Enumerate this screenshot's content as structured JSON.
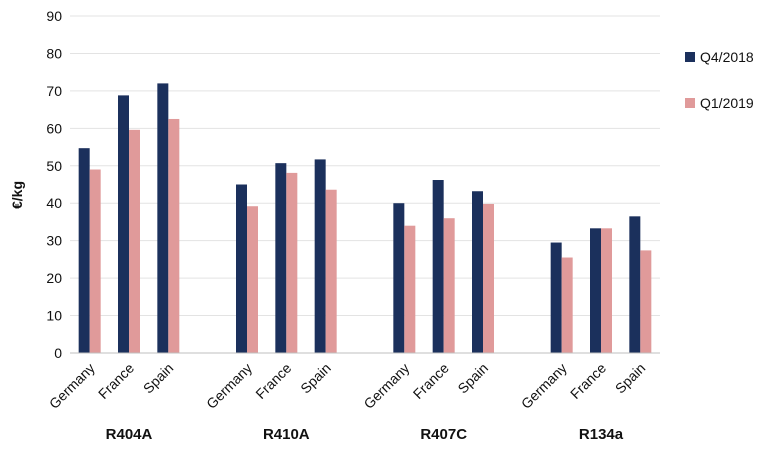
{
  "chart_data": {
    "type": "bar",
    "title": "",
    "xlabel": "",
    "ylabel": "€/kg",
    "ylim": [
      0,
      90
    ],
    "yticks": [
      0,
      10,
      20,
      30,
      40,
      50,
      60,
      70,
      80,
      90
    ],
    "grid": true,
    "legend_position": "right",
    "groups": [
      "R404A",
      "R410A",
      "R407C",
      "R134a"
    ],
    "categories": [
      "Germany",
      "France",
      "Spain",
      "Germany",
      "France",
      "Spain",
      "Germany",
      "France",
      "Spain",
      "Germany",
      "France",
      "Spain"
    ],
    "series": [
      {
        "name": "Q4/2018",
        "color": "#1b305c",
        "values": [
          54.7,
          68.8,
          72.0,
          45.0,
          50.7,
          51.7,
          40.0,
          46.2,
          43.2,
          29.5,
          33.3,
          36.5
        ]
      },
      {
        "name": "Q1/2019",
        "color": "#e09a9a",
        "values": [
          49.0,
          59.6,
          62.5,
          39.2,
          48.1,
          43.6,
          34.0,
          36.0,
          39.8,
          25.5,
          33.3,
          27.4
        ]
      }
    ]
  }
}
